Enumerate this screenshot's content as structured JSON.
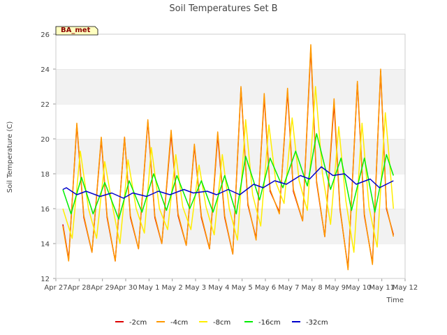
{
  "chart_data": {
    "type": "line",
    "title": "Soil Temperatures Set B",
    "xlabel": "Time",
    "ylabel": "Soil Temperature (C)",
    "ylim": [
      12,
      26
    ],
    "yticks": [
      12,
      14,
      16,
      18,
      20,
      22,
      24,
      26
    ],
    "xlim": [
      0,
      15
    ],
    "xticks": [
      {
        "x": 0,
        "label": "Apr 27"
      },
      {
        "x": 1,
        "label": "Apr 28"
      },
      {
        "x": 2,
        "label": "Apr 29"
      },
      {
        "x": 3,
        "label": "Apr 30"
      },
      {
        "x": 4,
        "label": "May 1"
      },
      {
        "x": 5,
        "label": "May 2"
      },
      {
        "x": 6,
        "label": "May 3"
      },
      {
        "x": 7,
        "label": "May 4"
      },
      {
        "x": 8,
        "label": "May 5"
      },
      {
        "x": 9,
        "label": "May 6"
      },
      {
        "x": 10,
        "label": "May 7"
      },
      {
        "x": 11,
        "label": "May 8"
      },
      {
        "x": 12,
        "label": "May 9"
      },
      {
        "x": 13,
        "label": "May 10"
      },
      {
        "x": 14,
        "label": "May 11"
      },
      {
        "x": 15,
        "label": "May 12"
      }
    ],
    "grid": "horizontal bands",
    "legend_position": "bottom",
    "badge": "BA_met",
    "series": [
      {
        "name": "-2cm",
        "color": "#dd0000",
        "x": [
          0.3,
          0.55,
          0.9,
          1.2,
          1.55,
          1.95,
          2.2,
          2.55,
          2.95,
          3.2,
          3.55,
          3.95,
          4.25,
          4.55,
          4.95,
          5.25,
          5.6,
          5.95,
          6.25,
          6.6,
          6.95,
          7.25,
          7.6,
          7.95,
          8.25,
          8.6,
          8.95,
          9.2,
          9.6,
          9.95,
          10.2,
          10.6,
          10.95,
          11.2,
          11.55,
          11.95,
          12.2,
          12.55,
          12.95,
          13.25,
          13.6,
          13.95,
          14.2,
          14.5
        ],
        "y": [
          15.1,
          13.1,
          20.8,
          15.5,
          13.5,
          20.0,
          15.5,
          13.0,
          20.1,
          15.5,
          13.7,
          21.0,
          15.5,
          14.0,
          20.3,
          15.6,
          13.9,
          19.6,
          15.5,
          13.7,
          20.2,
          15.5,
          13.4,
          22.9,
          16.2,
          14.3,
          22.4,
          17.0,
          15.8,
          22.7,
          17.0,
          15.3,
          25.2,
          17.5,
          14.4,
          22.0,
          16.0,
          12.6,
          23.2,
          15.6,
          12.9,
          23.9,
          16.0,
          14.5
        ]
      },
      {
        "name": "-4cm",
        "color": "#ff9900",
        "x": [
          0.3,
          0.55,
          0.9,
          1.2,
          1.55,
          1.95,
          2.2,
          2.55,
          2.95,
          3.2,
          3.55,
          3.95,
          4.25,
          4.55,
          4.95,
          5.25,
          5.6,
          5.95,
          6.25,
          6.6,
          6.95,
          7.25,
          7.6,
          7.95,
          8.25,
          8.6,
          8.95,
          9.2,
          9.6,
          9.95,
          10.2,
          10.6,
          10.95,
          11.2,
          11.55,
          11.95,
          12.2,
          12.55,
          12.95,
          13.25,
          13.6,
          13.95,
          14.2,
          14.5
        ],
        "y": [
          15.0,
          13.0,
          20.9,
          15.6,
          13.5,
          20.1,
          15.6,
          13.0,
          20.1,
          15.6,
          13.7,
          21.1,
          15.6,
          14.0,
          20.5,
          15.7,
          13.9,
          19.7,
          15.6,
          13.7,
          20.4,
          15.6,
          13.4,
          23.0,
          16.3,
          14.2,
          22.6,
          17.1,
          15.7,
          22.9,
          17.1,
          15.3,
          25.4,
          17.6,
          14.4,
          22.3,
          16.1,
          12.5,
          23.3,
          15.7,
          12.8,
          24.0,
          16.1,
          14.4
        ]
      },
      {
        "name": "-8cm",
        "color": "#ffee00",
        "x": [
          0.3,
          0.7,
          1.05,
          1.4,
          1.75,
          2.1,
          2.45,
          2.75,
          3.1,
          3.45,
          3.8,
          4.1,
          4.45,
          4.8,
          5.15,
          5.45,
          5.8,
          6.15,
          6.45,
          6.8,
          7.15,
          7.45,
          7.8,
          8.15,
          8.45,
          8.8,
          9.15,
          9.45,
          9.8,
          10.15,
          10.45,
          10.8,
          11.15,
          11.45,
          11.8,
          12.15,
          12.45,
          12.8,
          13.15,
          13.45,
          13.8,
          14.15,
          14.5
        ],
        "y": [
          16.0,
          14.3,
          19.3,
          16.0,
          14.3,
          18.7,
          16.0,
          14.0,
          18.8,
          16.0,
          14.6,
          19.5,
          16.0,
          14.8,
          19.1,
          16.1,
          14.8,
          18.5,
          16.1,
          14.5,
          19.1,
          16.0,
          14.2,
          21.1,
          16.8,
          15.0,
          20.8,
          17.5,
          16.3,
          21.2,
          17.6,
          15.9,
          23.0,
          18.0,
          15.1,
          20.7,
          16.5,
          13.5,
          20.9,
          16.1,
          13.8,
          21.5,
          16.0
        ]
      },
      {
        "name": "-16cm",
        "color": "#00ee00",
        "x": [
          0.3,
          0.65,
          1.1,
          1.6,
          2.1,
          2.7,
          3.15,
          3.7,
          4.2,
          4.75,
          5.2,
          5.75,
          6.25,
          6.75,
          7.25,
          7.75,
          8.15,
          8.75,
          9.2,
          9.75,
          10.3,
          10.8,
          11.2,
          11.8,
          12.25,
          12.7,
          13.25,
          13.7,
          14.2,
          14.5
        ],
        "y": [
          17.1,
          15.7,
          17.8,
          15.7,
          17.5,
          15.4,
          17.6,
          15.8,
          18.0,
          15.9,
          17.9,
          16.0,
          17.6,
          15.8,
          17.9,
          15.7,
          19.0,
          16.5,
          18.9,
          17.2,
          19.3,
          17.3,
          20.3,
          17.1,
          18.9,
          15.9,
          18.9,
          15.8,
          19.1,
          17.9
        ]
      },
      {
        "name": "-32cm",
        "color": "#0000cc",
        "x": [
          0.3,
          0.45,
          0.9,
          1.3,
          1.9,
          2.4,
          2.9,
          3.3,
          3.9,
          4.4,
          4.9,
          5.5,
          5.9,
          6.5,
          6.9,
          7.4,
          7.9,
          8.5,
          8.9,
          9.4,
          9.9,
          10.5,
          10.9,
          11.4,
          11.9,
          12.4,
          12.9,
          13.5,
          13.9,
          14.2,
          14.5
        ],
        "y": [
          17.1,
          17.2,
          16.8,
          17.0,
          16.7,
          16.9,
          16.6,
          16.9,
          16.7,
          17.0,
          16.8,
          17.1,
          16.9,
          17.0,
          16.8,
          17.1,
          16.8,
          17.4,
          17.2,
          17.6,
          17.4,
          17.9,
          17.7,
          18.4,
          17.9,
          18.0,
          17.4,
          17.7,
          17.2,
          17.4,
          17.6
        ]
      }
    ]
  }
}
